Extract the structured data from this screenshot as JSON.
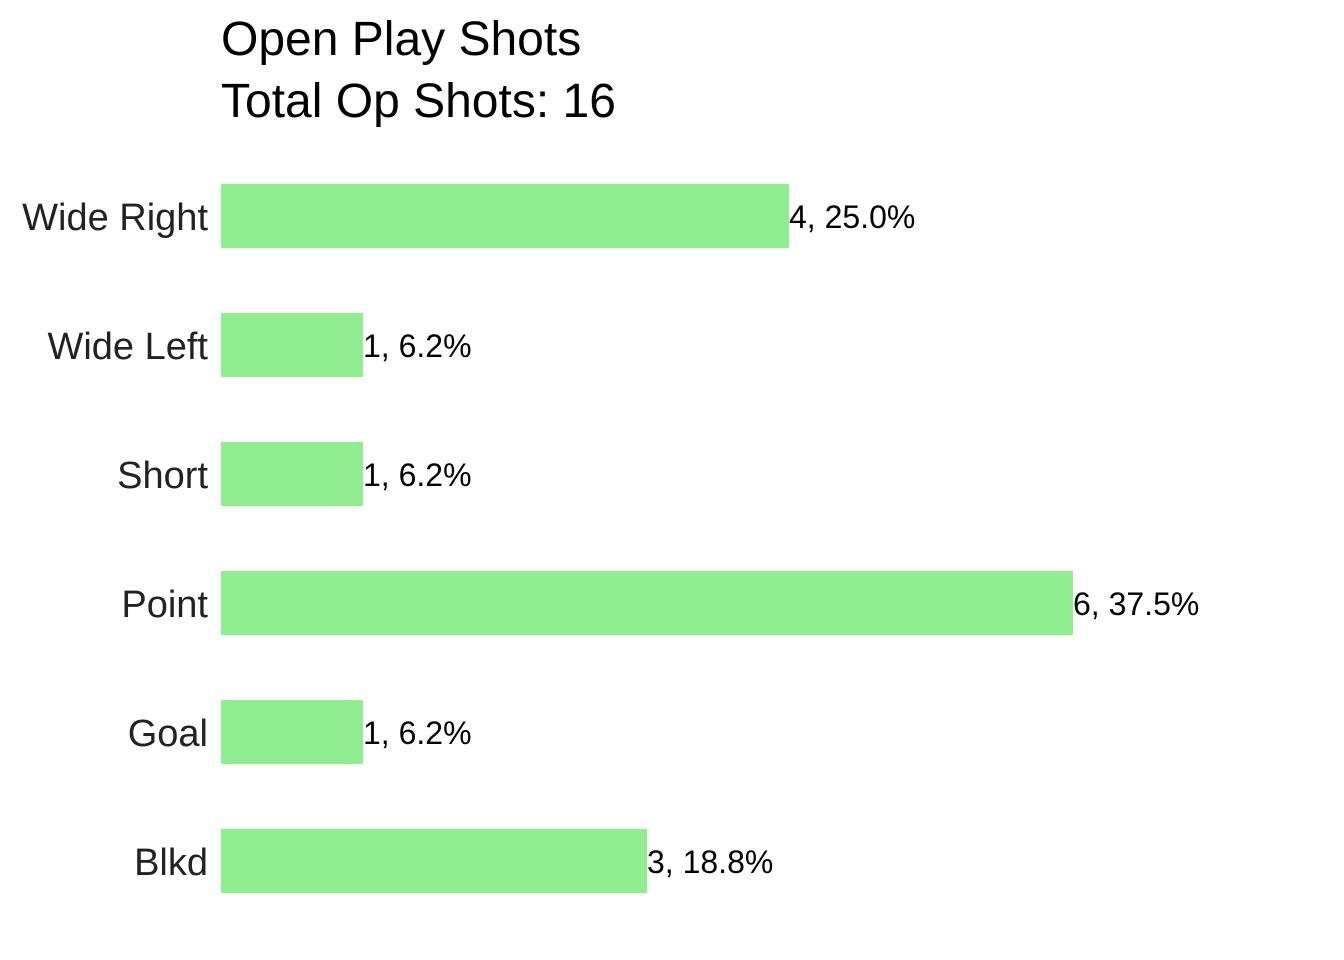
{
  "chart_data": {
    "type": "bar",
    "orientation": "horizontal",
    "title": "Open Play Shots",
    "subtitle": "Total Op Shots: 16",
    "categories": [
      "Wide Right",
      "Wide Left",
      "Short",
      "Point",
      "Goal",
      "Blkd"
    ],
    "values": [
      4,
      1,
      1,
      6,
      1,
      3
    ],
    "data_labels": [
      "4, 25.0%",
      "1, 6.2%",
      "1, 6.2%",
      "6, 37.5%",
      "1, 6.2%",
      "3, 18.8%"
    ],
    "xlim": [
      0,
      6
    ],
    "grid": false,
    "bar_color": "#90EE90"
  }
}
